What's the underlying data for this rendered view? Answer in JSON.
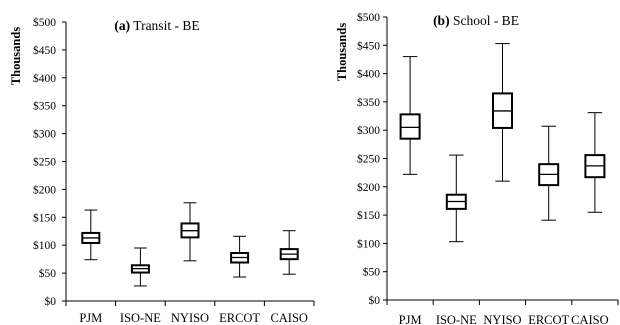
{
  "chart_data": [
    {
      "type": "box",
      "title_prefix": "(a)",
      "title_text": " Transit - BE",
      "ylabel": "Thousands",
      "ylim": [
        0,
        500
      ],
      "y_ticks": [
        "$0",
        "$50",
        "$100",
        "$150",
        "$200",
        "$250",
        "$300",
        "$350",
        "$400",
        "$450",
        "$500"
      ],
      "categories": [
        "PJM",
        "ISO-NE",
        "NYISO",
        "ERCOT",
        "CAISO"
      ],
      "boxes": [
        {
          "min": 74,
          "q1": 104,
          "median": 113,
          "q3": 122,
          "max": 163
        },
        {
          "min": 27,
          "q1": 51,
          "median": 58,
          "q3": 64,
          "max": 95
        },
        {
          "min": 72,
          "q1": 114,
          "median": 126,
          "q3": 139,
          "max": 176
        },
        {
          "min": 43,
          "q1": 69,
          "median": 78,
          "q3": 86,
          "max": 116
        },
        {
          "min": 48,
          "q1": 75,
          "median": 84,
          "q3": 93,
          "max": 126
        }
      ]
    },
    {
      "type": "box",
      "title_prefix": "(b)",
      "title_text": " School - BE",
      "ylabel": "Thousands",
      "ylim": [
        0,
        500
      ],
      "y_ticks": [
        "$0",
        "$50",
        "$100",
        "$150",
        "$200",
        "$250",
        "$300",
        "$350",
        "$400",
        "$450",
        "$500"
      ],
      "categories": [
        "PJM",
        "ISO-NE",
        "NYISO",
        "ERCOT",
        "CAISO"
      ],
      "boxes": [
        {
          "min": 222,
          "q1": 285,
          "median": 305,
          "q3": 328,
          "max": 430
        },
        {
          "min": 103,
          "q1": 161,
          "median": 174,
          "q3": 186,
          "max": 256
        },
        {
          "min": 210,
          "q1": 304,
          "median": 334,
          "q3": 365,
          "max": 453
        },
        {
          "min": 141,
          "q1": 203,
          "median": 222,
          "q3": 240,
          "max": 307
        },
        {
          "min": 155,
          "q1": 217,
          "median": 237,
          "q3": 256,
          "max": 331
        }
      ]
    }
  ]
}
